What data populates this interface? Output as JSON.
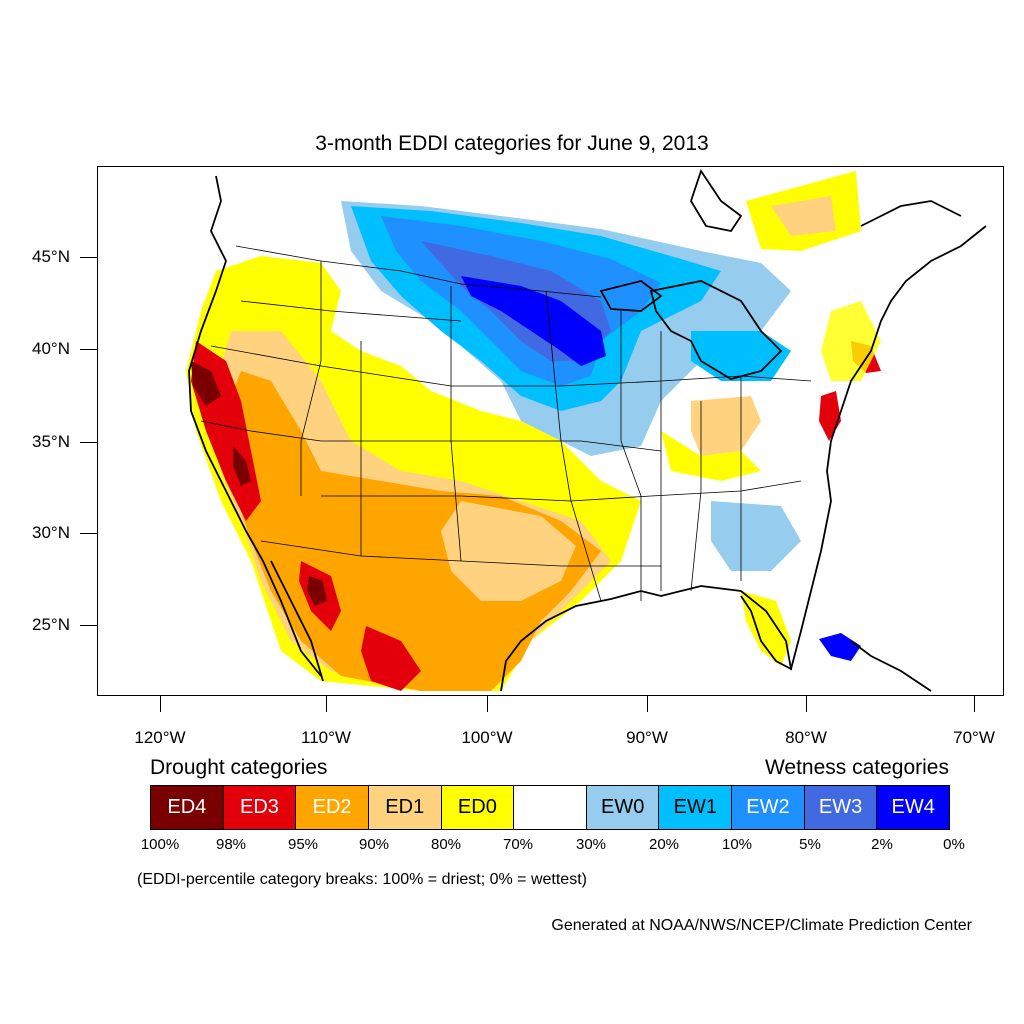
{
  "title": "3-month EDDI categories for June 9, 2013",
  "axes": {
    "lat_labels": [
      "45°N",
      "40°N",
      "35°N",
      "30°N",
      "25°N"
    ],
    "lon_labels": [
      "120°W",
      "110°W",
      "100°W",
      "90°W",
      "80°W",
      "70°W"
    ]
  },
  "legend": {
    "drought_heading": "Drought categories",
    "wetness_heading": "Wetness categories",
    "categories": [
      {
        "label": "ED4",
        "color": "#7a0000",
        "text_color": "#ffffff"
      },
      {
        "label": "ED3",
        "color": "#e3000b",
        "text_color": "#ffffff"
      },
      {
        "label": "ED2",
        "color": "#ffa500",
        "text_color": "#ffffff"
      },
      {
        "label": "ED1",
        "color": "#ffd27f",
        "text_color": "#000000"
      },
      {
        "label": "ED0",
        "color": "#ffff00",
        "text_color": "#000000"
      },
      {
        "label": "",
        "color": "#ffffff",
        "text_color": "#000000"
      },
      {
        "label": "EW0",
        "color": "#96cdef",
        "text_color": "#000000"
      },
      {
        "label": "EW1",
        "color": "#00bfff",
        "text_color": "#000000"
      },
      {
        "label": "EW2",
        "color": "#1e90ff",
        "text_color": "#ffffff"
      },
      {
        "label": "EW3",
        "color": "#4169e1",
        "text_color": "#ffffff"
      },
      {
        "label": "EW4",
        "color": "#0000ff",
        "text_color": "#ffffff"
      }
    ],
    "percentiles": [
      "100%",
      "98%",
      "95%",
      "90%",
      "80%",
      "70%",
      "30%",
      "20%",
      "10%",
      "5%",
      "2%",
      "0%"
    ]
  },
  "note": "(EDDI-percentile category breaks: 100% = driest; 0% = wettest)",
  "credit": "Generated at NOAA/NWS/NCEP/Climate Prediction Center"
}
